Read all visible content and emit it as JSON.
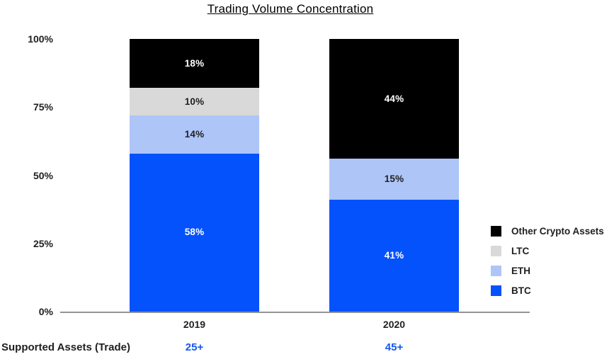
{
  "title": "Trading Volume Concentration",
  "chart_data": {
    "type": "bar",
    "stacked": true,
    "title": "Trading Volume Concentration",
    "categories": [
      "2019",
      "2020"
    ],
    "series": [
      {
        "name": "BTC",
        "color": "#0452FB",
        "label_color": "#ffffff",
        "values": [
          58,
          41
        ]
      },
      {
        "name": "ETH",
        "color": "#AEC5F8",
        "label_color": "#1f1f1f",
        "values": [
          14,
          15
        ]
      },
      {
        "name": "LTC",
        "color": "#D9D9D9",
        "label_color": "#1f1f1f",
        "values": [
          10,
          0
        ]
      },
      {
        "name": "Other Crypto Assets",
        "color": "#000000",
        "label_color": "#ffffff",
        "values": [
          18,
          44
        ]
      }
    ],
    "value_suffix": "%",
    "y_ticks": [
      100,
      75,
      50,
      25,
      0
    ],
    "y_tick_suffix": "%",
    "ylim": [
      0,
      100
    ],
    "grid": false,
    "legend_position": "right",
    "legend_order": [
      "Other Crypto Assets",
      "LTC",
      "ETH",
      "BTC"
    ]
  },
  "footer": {
    "label": "Supported Assets (Trade)",
    "values": [
      "25+",
      "45+"
    ],
    "value_color": "#1657F0"
  },
  "colors": {
    "axis_line": "#949494",
    "text": "#1f1f1f",
    "background": "#ffffff"
  }
}
